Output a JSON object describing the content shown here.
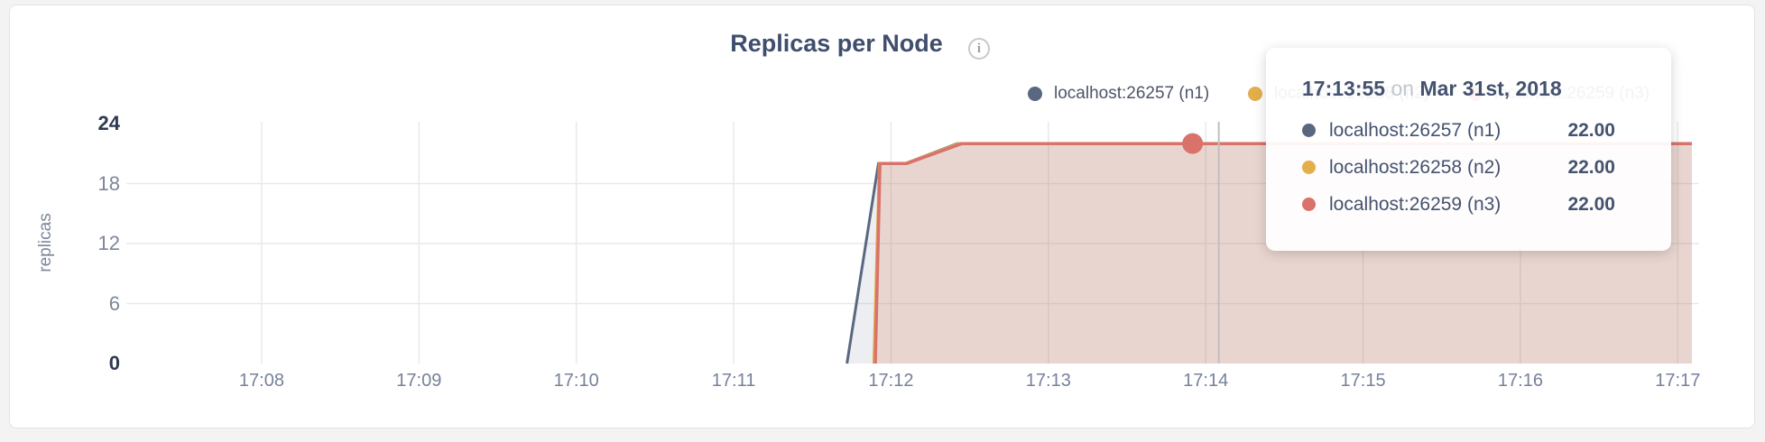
{
  "title": {
    "text": "Replicas per Node"
  },
  "legend": {
    "items": [
      {
        "label": "localhost:26257 (n1)",
        "color": "#5a6780"
      },
      {
        "label": "localhost:26258 (n2)",
        "color": "#e2af4b"
      },
      {
        "label": "localhost:26259 (n3)",
        "color": "#d9726b"
      }
    ]
  },
  "tooltip": {
    "time": "17:13:55",
    "on_word": "on",
    "date": "Mar 31st, 2018",
    "rows": [
      {
        "label": "localhost:26257 (n1)",
        "value": "22.00",
        "color": "#5a6780"
      },
      {
        "label": "localhost:26258 (n2)",
        "value": "22.00",
        "color": "#e2af4b"
      },
      {
        "label": "localhost:26259 (n3)",
        "value": "22.00",
        "color": "#d9726b"
      }
    ]
  },
  "chart_data": {
    "type": "area",
    "title": "Replicas per Node",
    "xlabel": "",
    "ylabel": "replicas",
    "ylim": [
      0,
      24
    ],
    "y_ticks": [
      0,
      6,
      12,
      18,
      24
    ],
    "y_ticks_emphasized": [
      0,
      24
    ],
    "grid_y_values": [
      6,
      12,
      18
    ],
    "grid": true,
    "legend_position": "top-right",
    "x_unit": "time (hh:mm), hour 17",
    "x_domain_minutes": [
      7.14,
      17.09
    ],
    "x_tick_minutes": [
      8,
      9,
      10,
      11,
      12,
      13,
      14,
      15,
      16,
      17
    ],
    "x_tick_labels": [
      "17:08",
      "17:09",
      "17:10",
      "17:11",
      "17:12",
      "17:13",
      "17:14",
      "17:15",
      "17:16",
      "17:17"
    ],
    "series": [
      {
        "name": "localhost:26257 (n1)",
        "color": "#5a6780",
        "fill": "rgba(90,103,128,0.11)",
        "line_width": 3,
        "points_minutes_value": [
          [
            11.72,
            0
          ],
          [
            11.92,
            20
          ],
          [
            12.09,
            20
          ],
          [
            12.42,
            22
          ],
          [
            17.09,
            22
          ]
        ]
      },
      {
        "name": "localhost:26258 (n2)",
        "color": "#e2af4b",
        "fill": "rgba(226,175,75,0.08)",
        "line_width": 3,
        "points_minutes_value": [
          [
            11.89,
            0
          ],
          [
            11.925,
            20
          ],
          [
            12.09,
            20
          ],
          [
            12.43,
            22
          ],
          [
            17.09,
            22
          ]
        ]
      },
      {
        "name": "localhost:26259 (n3)",
        "color": "#d9726b",
        "fill": "rgba(217,114,107,0.16)",
        "line_width": 3.5,
        "points_minutes_value": [
          [
            11.9,
            0
          ],
          [
            11.93,
            20
          ],
          [
            12.1,
            20
          ],
          [
            12.45,
            22
          ],
          [
            17.09,
            22
          ]
        ]
      }
    ],
    "highlight_point": {
      "series": "localhost:26259 (n3)",
      "x_minute": 13.9167,
      "time": "17:13:55",
      "value": 22,
      "color": "#d9726b"
    },
    "crosshair": {
      "x_minute": 14.083,
      "color": "#bfbfbf"
    },
    "gridline_color": "#e9e9e9"
  }
}
